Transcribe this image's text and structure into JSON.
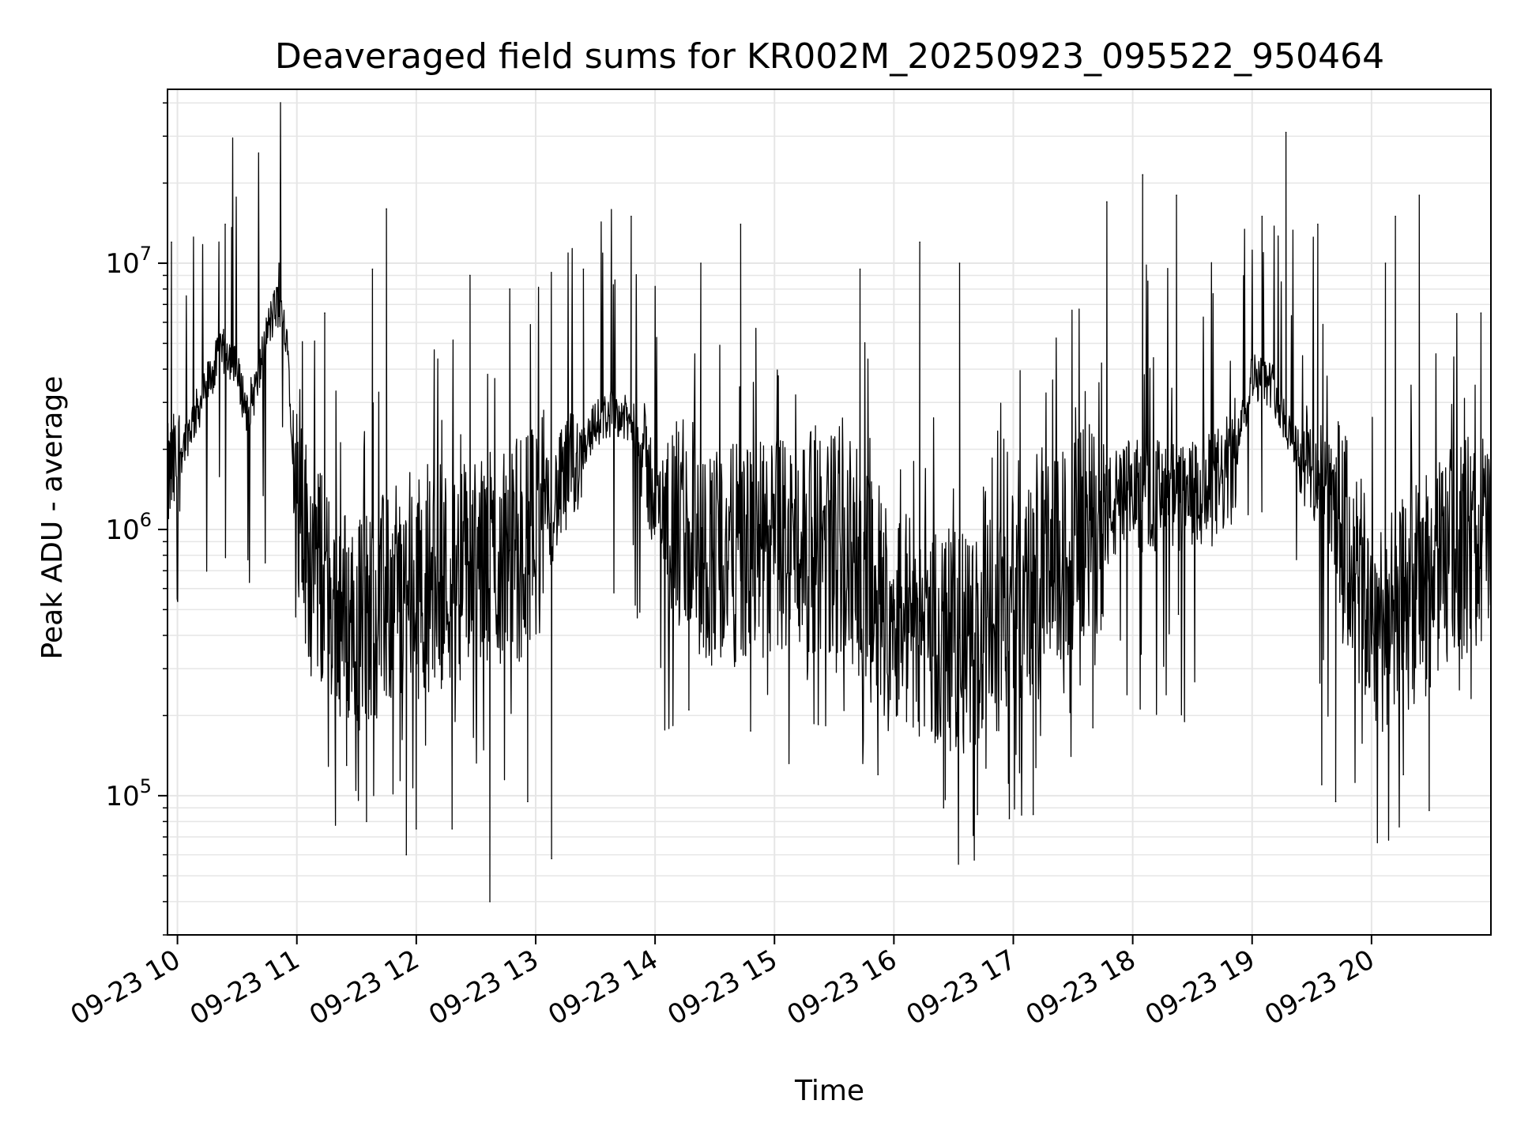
{
  "chart_data": {
    "type": "line",
    "title": "Deaveraged field sums for KR002M_20250923_095522_950464",
    "xlabel": "Time",
    "ylabel": "Peak ADU - average",
    "y_scale": "log",
    "ylim": [
      30000,
      45000000
    ],
    "xlim": [
      "2025-09-23 09:55",
      "2025-09-23 21:00"
    ],
    "grid": true,
    "line_color": "#000000",
    "grid_color": "#e6e6e6",
    "x_ticks": [
      {
        "t": "2025-09-23 10:00",
        "label": "09-23 10"
      },
      {
        "t": "2025-09-23 11:00",
        "label": "09-23 11"
      },
      {
        "t": "2025-09-23 12:00",
        "label": "09-23 12"
      },
      {
        "t": "2025-09-23 13:00",
        "label": "09-23 13"
      },
      {
        "t": "2025-09-23 14:00",
        "label": "09-23 14"
      },
      {
        "t": "2025-09-23 15:00",
        "label": "09-23 15"
      },
      {
        "t": "2025-09-23 16:00",
        "label": "09-23 16"
      },
      {
        "t": "2025-09-23 17:00",
        "label": "09-23 17"
      },
      {
        "t": "2025-09-23 18:00",
        "label": "09-23 18"
      },
      {
        "t": "2025-09-23 19:00",
        "label": "09-23 19"
      },
      {
        "t": "2025-09-23 20:00",
        "label": "09-23 20"
      }
    ],
    "y_ticks": [
      {
        "value": 100000,
        "base": "10",
        "exp": "5"
      },
      {
        "value": 1000000,
        "base": "10",
        "exp": "6"
      },
      {
        "value": 10000000,
        "base": "10",
        "exp": "7"
      }
    ],
    "series": [
      {
        "x": [
          "2025-09-23 09:55",
          "2025-09-23 10:00",
          "2025-09-23 10:05",
          "2025-09-23 10:10",
          "2025-09-23 10:15",
          "2025-09-23 10:20",
          "2025-09-23 10:25",
          "2025-09-23 10:30",
          "2025-09-23 10:35",
          "2025-09-23 10:40",
          "2025-09-23 10:45",
          "2025-09-23 10:50",
          "2025-09-23 10:55",
          "2025-09-23 11:00",
          "2025-09-23 11:10",
          "2025-09-23 11:20",
          "2025-09-23 11:30",
          "2025-09-23 11:40",
          "2025-09-23 11:50",
          "2025-09-23 12:00",
          "2025-09-23 12:10",
          "2025-09-23 12:20",
          "2025-09-23 12:30",
          "2025-09-23 12:40",
          "2025-09-23 12:50",
          "2025-09-23 13:00",
          "2025-09-23 13:10",
          "2025-09-23 13:20",
          "2025-09-23 13:30",
          "2025-09-23 13:40",
          "2025-09-23 13:50",
          "2025-09-23 14:00",
          "2025-09-23 14:10",
          "2025-09-23 14:20",
          "2025-09-23 14:30",
          "2025-09-23 14:40",
          "2025-09-23 14:50",
          "2025-09-23 15:00",
          "2025-09-23 15:10",
          "2025-09-23 15:20",
          "2025-09-23 15:30",
          "2025-09-23 15:40",
          "2025-09-23 15:50",
          "2025-09-23 16:00",
          "2025-09-23 16:10",
          "2025-09-23 16:20",
          "2025-09-23 16:30",
          "2025-09-23 16:40",
          "2025-09-23 16:50",
          "2025-09-23 17:00",
          "2025-09-23 17:10",
          "2025-09-23 17:20",
          "2025-09-23 17:30",
          "2025-09-23 17:40",
          "2025-09-23 17:50",
          "2025-09-23 18:00",
          "2025-09-23 18:10",
          "2025-09-23 18:20",
          "2025-09-23 18:30",
          "2025-09-23 18:40",
          "2025-09-23 18:50",
          "2025-09-23 19:00",
          "2025-09-23 19:10",
          "2025-09-23 19:20",
          "2025-09-23 19:30",
          "2025-09-23 19:40",
          "2025-09-23 19:50",
          "2025-09-23 20:00",
          "2025-09-23 20:10",
          "2025-09-23 20:20",
          "2025-09-23 20:30",
          "2025-09-23 20:40",
          "2025-09-23 20:50",
          "2025-09-23 21:00"
        ],
        "values": [
          1500000,
          1800000,
          2300000,
          2800000,
          3500000,
          4300000,
          4800000,
          3800000,
          2800000,
          3500000,
          5500000,
          7000000,
          5500000,
          1100000,
          700000,
          500000,
          450000,
          500000,
          550000,
          600000,
          650000,
          700000,
          700000,
          750000,
          850000,
          1000000,
          1300000,
          1800000,
          2500000,
          2800000,
          2400000,
          1300000,
          1000000,
          850000,
          800000,
          800000,
          800000,
          850000,
          900000,
          900000,
          900000,
          800000,
          550000,
          500000,
          450000,
          400000,
          380000,
          380000,
          420000,
          500000,
          600000,
          700000,
          850000,
          1000000,
          1200000,
          1350000,
          1350000,
          1300000,
          1300000,
          1400000,
          1700000,
          3800000,
          3500000,
          2200000,
          1700000,
          1300000,
          750000,
          450000,
          450000,
          550000,
          650000,
          800000,
          900000,
          950000
        ]
      }
    ],
    "spikes": [
      {
        "t": "2025-09-23 09:57",
        "y": 12000000
      },
      {
        "t": "2025-09-23 10:24",
        "y": 14000000
      },
      {
        "t": "2025-09-23 10:51",
        "y": 10000000
      },
      {
        "t": "2025-09-23 11:14",
        "y": 6500000
      },
      {
        "t": "2025-09-23 11:38",
        "y": 9500000
      },
      {
        "t": "2025-09-23 11:45",
        "y": 16000000
      },
      {
        "t": "2025-09-23 12:27",
        "y": 9000000
      },
      {
        "t": "2025-09-23 12:47",
        "y": 8000000
      },
      {
        "t": "2025-09-23 13:24",
        "y": 9500000
      },
      {
        "t": "2025-09-23 13:48",
        "y": 15000000
      },
      {
        "t": "2025-09-23 14:23",
        "y": 10000000
      },
      {
        "t": "2025-09-23 14:43",
        "y": 14000000
      },
      {
        "t": "2025-09-23 15:43",
        "y": 9500000
      },
      {
        "t": "2025-09-23 16:13",
        "y": 12000000
      },
      {
        "t": "2025-09-23 16:33",
        "y": 10000000
      },
      {
        "t": "2025-09-23 17:47",
        "y": 17000000
      },
      {
        "t": "2025-09-23 18:05",
        "y": 21500000
      },
      {
        "t": "2025-09-23 18:22",
        "y": 18000000
      },
      {
        "t": "2025-09-23 19:05",
        "y": 15000000
      },
      {
        "t": "2025-09-23 19:17",
        "y": 31000000
      },
      {
        "t": "2025-09-23 19:33",
        "y": 14000000
      },
      {
        "t": "2025-09-23 20:07",
        "y": 10000000
      },
      {
        "t": "2025-09-23 20:12",
        "y": 15000000
      },
      {
        "t": "2025-09-23 20:24",
        "y": 18000000
      },
      {
        "t": "2025-09-23 20:55",
        "y": 6500000
      }
    ],
    "dips": [
      {
        "t": "2025-09-23 11:25",
        "y": 130000
      },
      {
        "t": "2025-09-23 11:35",
        "y": 80000
      },
      {
        "t": "2025-09-23 11:55",
        "y": 60000
      },
      {
        "t": "2025-09-23 12:00",
        "y": 75000
      },
      {
        "t": "2025-09-23 12:18",
        "y": 75000
      },
      {
        "t": "2025-09-23 12:37",
        "y": 40000
      },
      {
        "t": "2025-09-23 12:56",
        "y": 95000
      },
      {
        "t": "2025-09-23 13:08",
        "y": 58000
      },
      {
        "t": "2025-09-23 14:17",
        "y": 210000
      },
      {
        "t": "2025-09-23 14:48",
        "y": 175000
      },
      {
        "t": "2025-09-23 15:22",
        "y": 185000
      },
      {
        "t": "2025-09-23 15:52",
        "y": 120000
      },
      {
        "t": "2025-09-23 16:25",
        "y": 90000
      },
      {
        "t": "2025-09-23 16:42",
        "y": 85000
      },
      {
        "t": "2025-09-23 16:58",
        "y": 82000
      },
      {
        "t": "2025-09-23 17:10",
        "y": 85000
      },
      {
        "t": "2025-09-23 17:40",
        "y": 180000
      },
      {
        "t": "2025-09-23 18:23",
        "y": 480000
      },
      {
        "t": "2025-09-23 19:35",
        "y": 110000
      },
      {
        "t": "2025-09-23 19:42",
        "y": 95000
      },
      {
        "t": "2025-09-23 20:16",
        "y": 120000
      },
      {
        "t": "2025-09-23 20:29",
        "y": 88000
      }
    ]
  }
}
